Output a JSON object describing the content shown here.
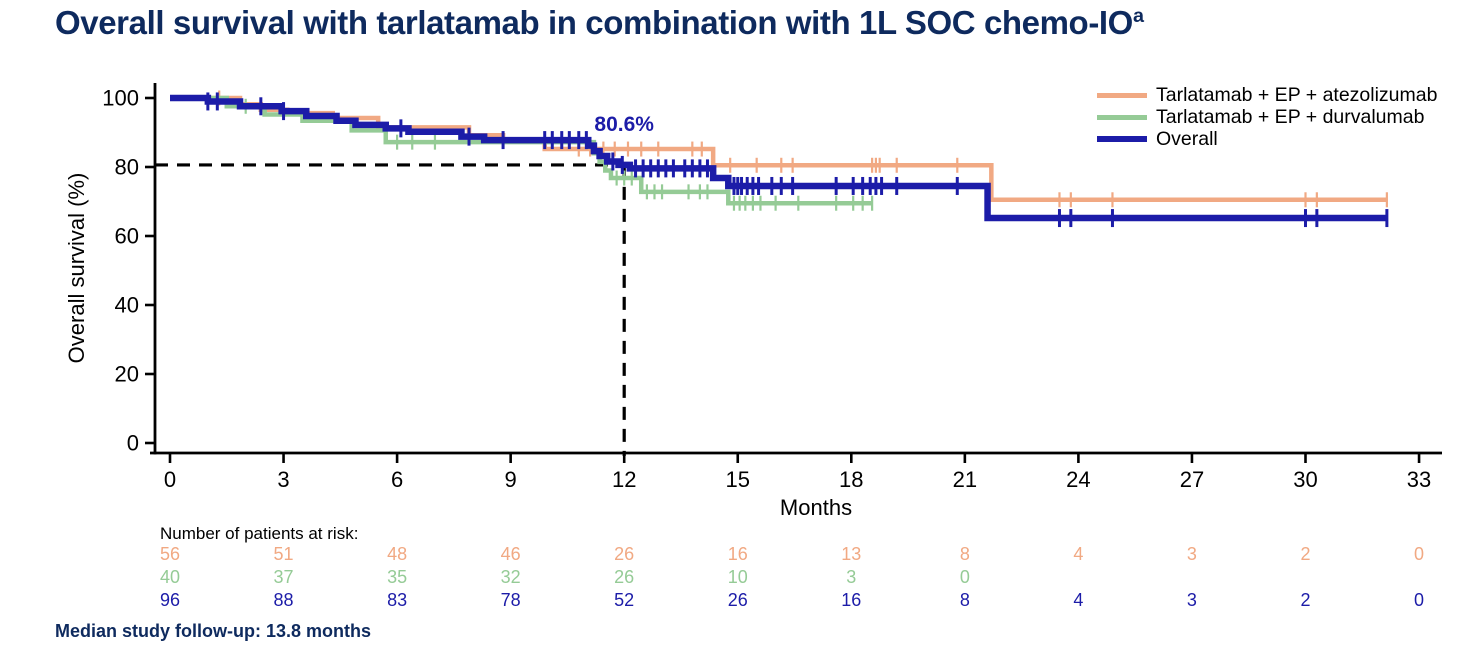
{
  "page": {
    "title": "Overall survival with tarlatamab in combination with 1L SOC chemo-IO",
    "title_superscript": "a",
    "footnote": "Median study follow-up: 13.8 months"
  },
  "colors": {
    "title_navy": "#0e2a5e",
    "axis_black": "#000000",
    "atezolizumab_salmon": "#f1a983",
    "durvalumab_green": "#95cb96",
    "overall_navy": "#1c1ca8"
  },
  "legend": {
    "items": [
      {
        "label": "Tarlatamab + EP + atezolizumab",
        "color": "#f1a983",
        "thickness": 5
      },
      {
        "label": "Tarlatamab + EP + durvalumab",
        "color": "#95cb96",
        "thickness": 5
      },
      {
        "label": "Overall",
        "color": "#1c1ca8",
        "thickness": 6
      }
    ]
  },
  "chart_data": {
    "type": "line",
    "subtype": "kaplan-meier-step",
    "title": "",
    "xlabel": "Months",
    "ylabel": "Overall survival (%)",
    "xlim": [
      0,
      33
    ],
    "ylim": [
      0,
      100
    ],
    "xticks": [
      0,
      3,
      6,
      9,
      12,
      15,
      18,
      21,
      24,
      27,
      30,
      33
    ],
    "yticks": [
      0,
      20,
      40,
      60,
      80,
      100
    ],
    "grid": false,
    "legend_position": "top-right",
    "annotation": {
      "text": "80.6%",
      "x": 12,
      "y": 80.6,
      "dashed_reference_lines": true
    },
    "twelve_month_os_overall_pct": 80.6,
    "series": [
      {
        "name": "Tarlatamab + EP + atezolizumab",
        "color": "#f1a983",
        "line_width": 4.5,
        "steps": [
          [
            0,
            100
          ],
          [
            1.85,
            98.2
          ],
          [
            2.4,
            96.6
          ],
          [
            3.1,
            95.6
          ],
          [
            4.3,
            94.2
          ],
          [
            5.5,
            91.5
          ],
          [
            7.9,
            89.2
          ],
          [
            8.8,
            87.4
          ],
          [
            9.9,
            85.2
          ],
          [
            14.35,
            80.5
          ],
          [
            21.7,
            70.5
          ]
        ],
        "end_time": 32.15,
        "censor_times": [
          1.3,
          10.8,
          11.1,
          11.45,
          11.75,
          12.1,
          12.45,
          12.9,
          13.8,
          14.05,
          14.8,
          15.5,
          16.15,
          16.45,
          18.55,
          18.65,
          18.75,
          19.2,
          20.8,
          23.5,
          23.8,
          24.9,
          30.0,
          30.3,
          32.15
        ]
      },
      {
        "name": "Tarlatamab + EP + durvalumab",
        "color": "#95cb96",
        "line_width": 4.5,
        "steps": [
          [
            0,
            100
          ],
          [
            1.5,
            97.6
          ],
          [
            2.5,
            95.2
          ],
          [
            3.5,
            93.4
          ],
          [
            4.8,
            90.6
          ],
          [
            5.7,
            87.2
          ],
          [
            11.2,
            84.0
          ],
          [
            11.35,
            81.5
          ],
          [
            11.5,
            79.0
          ],
          [
            11.65,
            76.8
          ],
          [
            12.45,
            72.8
          ],
          [
            14.75,
            69.5
          ]
        ],
        "end_time": 18.55,
        "censor_times": [
          2.0,
          6.0,
          6.4,
          7.0,
          11.8,
          12.0,
          12.2,
          12.6,
          12.8,
          13.0,
          13.7,
          14.0,
          14.2,
          14.9,
          15.05,
          15.2,
          15.4,
          15.6,
          16.0,
          16.6,
          17.6,
          18.05,
          18.3,
          18.55
        ]
      },
      {
        "name": "Overall",
        "color": "#1c1ca8",
        "line_width": 6.5,
        "steps": [
          [
            0,
            100
          ],
          [
            1.0,
            99.0
          ],
          [
            1.85,
            97.6
          ],
          [
            2.95,
            96.2
          ],
          [
            3.6,
            94.8
          ],
          [
            4.4,
            93.4
          ],
          [
            4.9,
            92.2
          ],
          [
            5.7,
            91.2
          ],
          [
            6.3,
            90.2
          ],
          [
            7.7,
            88.8
          ],
          [
            8.3,
            87.8
          ],
          [
            11.05,
            86.2
          ],
          [
            11.2,
            84.6
          ],
          [
            11.35,
            83.2
          ],
          [
            11.55,
            81.6
          ],
          [
            11.85,
            80.6
          ],
          [
            12.15,
            79.6
          ],
          [
            14.35,
            76.8
          ],
          [
            14.75,
            74.5
          ],
          [
            21.6,
            65.2
          ]
        ],
        "end_time": 32.15,
        "censor_times": [
          1.0,
          1.25,
          2.4,
          3.0,
          6.1,
          7.9,
          8.8,
          9.9,
          10.1,
          10.35,
          10.55,
          10.8,
          11.0,
          11.7,
          11.95,
          12.3,
          12.5,
          12.7,
          12.9,
          13.1,
          13.3,
          13.6,
          13.8,
          14.0,
          14.2,
          14.9,
          15.0,
          15.1,
          15.25,
          15.4,
          15.55,
          15.9,
          16.15,
          16.45,
          17.6,
          18.05,
          18.3,
          18.5,
          18.65,
          18.8,
          19.2,
          20.8,
          23.5,
          23.8,
          24.9,
          30.0,
          30.3,
          32.15
        ]
      }
    ]
  },
  "risk_table": {
    "header": "Number of patients at risk:",
    "times": [
      0,
      3,
      6,
      9,
      12,
      15,
      18,
      21,
      24,
      27,
      30,
      33
    ],
    "rows": [
      {
        "series": "Tarlatamab + EP + atezolizumab",
        "color": "#f1a983",
        "counts": [
          "56",
          "51",
          "48",
          "46",
          "26",
          "16",
          "13",
          "8",
          "4",
          "3",
          "2",
          "0"
        ]
      },
      {
        "series": "Tarlatamab + EP + durvalumab",
        "color": "#95cb96",
        "counts": [
          "40",
          "37",
          "35",
          "32",
          "26",
          "10",
          "3",
          "0",
          "",
          "",
          "",
          ""
        ]
      },
      {
        "series": "Overall",
        "color": "#1c1ca8",
        "counts": [
          "96",
          "88",
          "83",
          "78",
          "52",
          "26",
          "16",
          "8",
          "4",
          "3",
          "2",
          "0"
        ]
      }
    ]
  }
}
